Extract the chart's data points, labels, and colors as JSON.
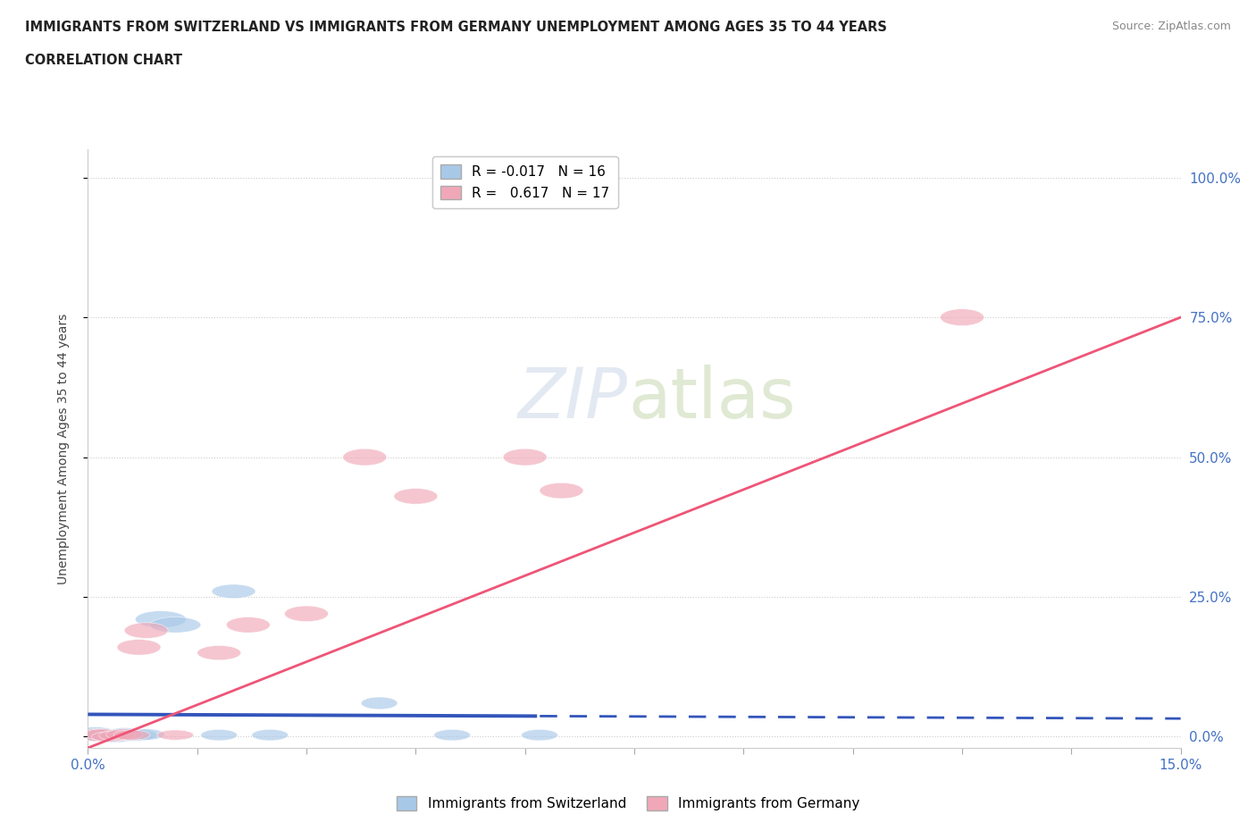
{
  "title_line1": "IMMIGRANTS FROM SWITZERLAND VS IMMIGRANTS FROM GERMANY UNEMPLOYMENT AMONG AGES 35 TO 44 YEARS",
  "title_line2": "CORRELATION CHART",
  "source": "Source: ZipAtlas.com",
  "ylabel": "Unemployment Among Ages 35 to 44 years",
  "legend_label_1": "Immigrants from Switzerland",
  "legend_label_2": "Immigrants from Germany",
  "r1": -0.017,
  "n1": 16,
  "r2": 0.617,
  "n2": 17,
  "color_swiss": "#a8c8e8",
  "color_germany": "#f0a8b8",
  "color_swiss_line": "#3355BB",
  "color_germany_line": "#EE5577",
  "xlim": [
    0.0,
    0.15
  ],
  "ylim": [
    -0.02,
    1.05
  ],
  "background_color": "#ffffff",
  "grid_color": "#cccccc",
  "swiss_x": [
    0.001,
    0.002,
    0.003,
    0.004,
    0.005,
    0.006,
    0.007,
    0.008,
    0.01,
    0.012,
    0.018,
    0.02,
    0.025,
    0.04,
    0.05,
    0.062
  ],
  "swiss_y": [
    0.005,
    0.002,
    0.0,
    0.0,
    0.005,
    0.002,
    0.003,
    0.004,
    0.21,
    0.2,
    0.003,
    0.26,
    0.003,
    0.06,
    0.003,
    0.003
  ],
  "germany_x": [
    0.001,
    0.002,
    0.003,
    0.004,
    0.005,
    0.006,
    0.007,
    0.008,
    0.012,
    0.018,
    0.022,
    0.03,
    0.038,
    0.045,
    0.06,
    0.065,
    0.12
  ],
  "germany_y": [
    0.003,
    0.004,
    0.0,
    0.002,
    0.004,
    0.003,
    0.16,
    0.19,
    0.003,
    0.15,
    0.2,
    0.22,
    0.5,
    0.43,
    0.5,
    0.44,
    0.75
  ],
  "swiss_ew": [
    0.006,
    0.005,
    0.005,
    0.005,
    0.005,
    0.005,
    0.005,
    0.005,
    0.007,
    0.007,
    0.005,
    0.006,
    0.005,
    0.005,
    0.005,
    0.005
  ],
  "swiss_eh": [
    0.025,
    0.022,
    0.02,
    0.02,
    0.022,
    0.02,
    0.02,
    0.02,
    0.03,
    0.028,
    0.02,
    0.025,
    0.02,
    0.022,
    0.02,
    0.02
  ],
  "germany_ew": [
    0.005,
    0.005,
    0.005,
    0.005,
    0.005,
    0.005,
    0.006,
    0.006,
    0.005,
    0.006,
    0.006,
    0.006,
    0.006,
    0.006,
    0.006,
    0.006,
    0.006
  ],
  "germany_eh": [
    0.022,
    0.02,
    0.018,
    0.018,
    0.02,
    0.018,
    0.028,
    0.028,
    0.018,
    0.026,
    0.028,
    0.028,
    0.03,
    0.028,
    0.03,
    0.028,
    0.03
  ],
  "ytick_positions": [
    0.0,
    0.25,
    0.5,
    0.75,
    1.0
  ],
  "ytick_labels_right": [
    "0.0%",
    "25.0%",
    "50.0%",
    "75.0%",
    "100.0%"
  ],
  "xtick_positions": [
    0.0,
    0.015,
    0.03,
    0.045,
    0.06,
    0.075,
    0.09,
    0.105,
    0.12,
    0.135,
    0.15
  ],
  "xtick_labels": [
    "0.0%",
    "",
    "",
    "",
    "",
    "",
    "",
    "",
    "",
    "",
    "15.0%"
  ]
}
